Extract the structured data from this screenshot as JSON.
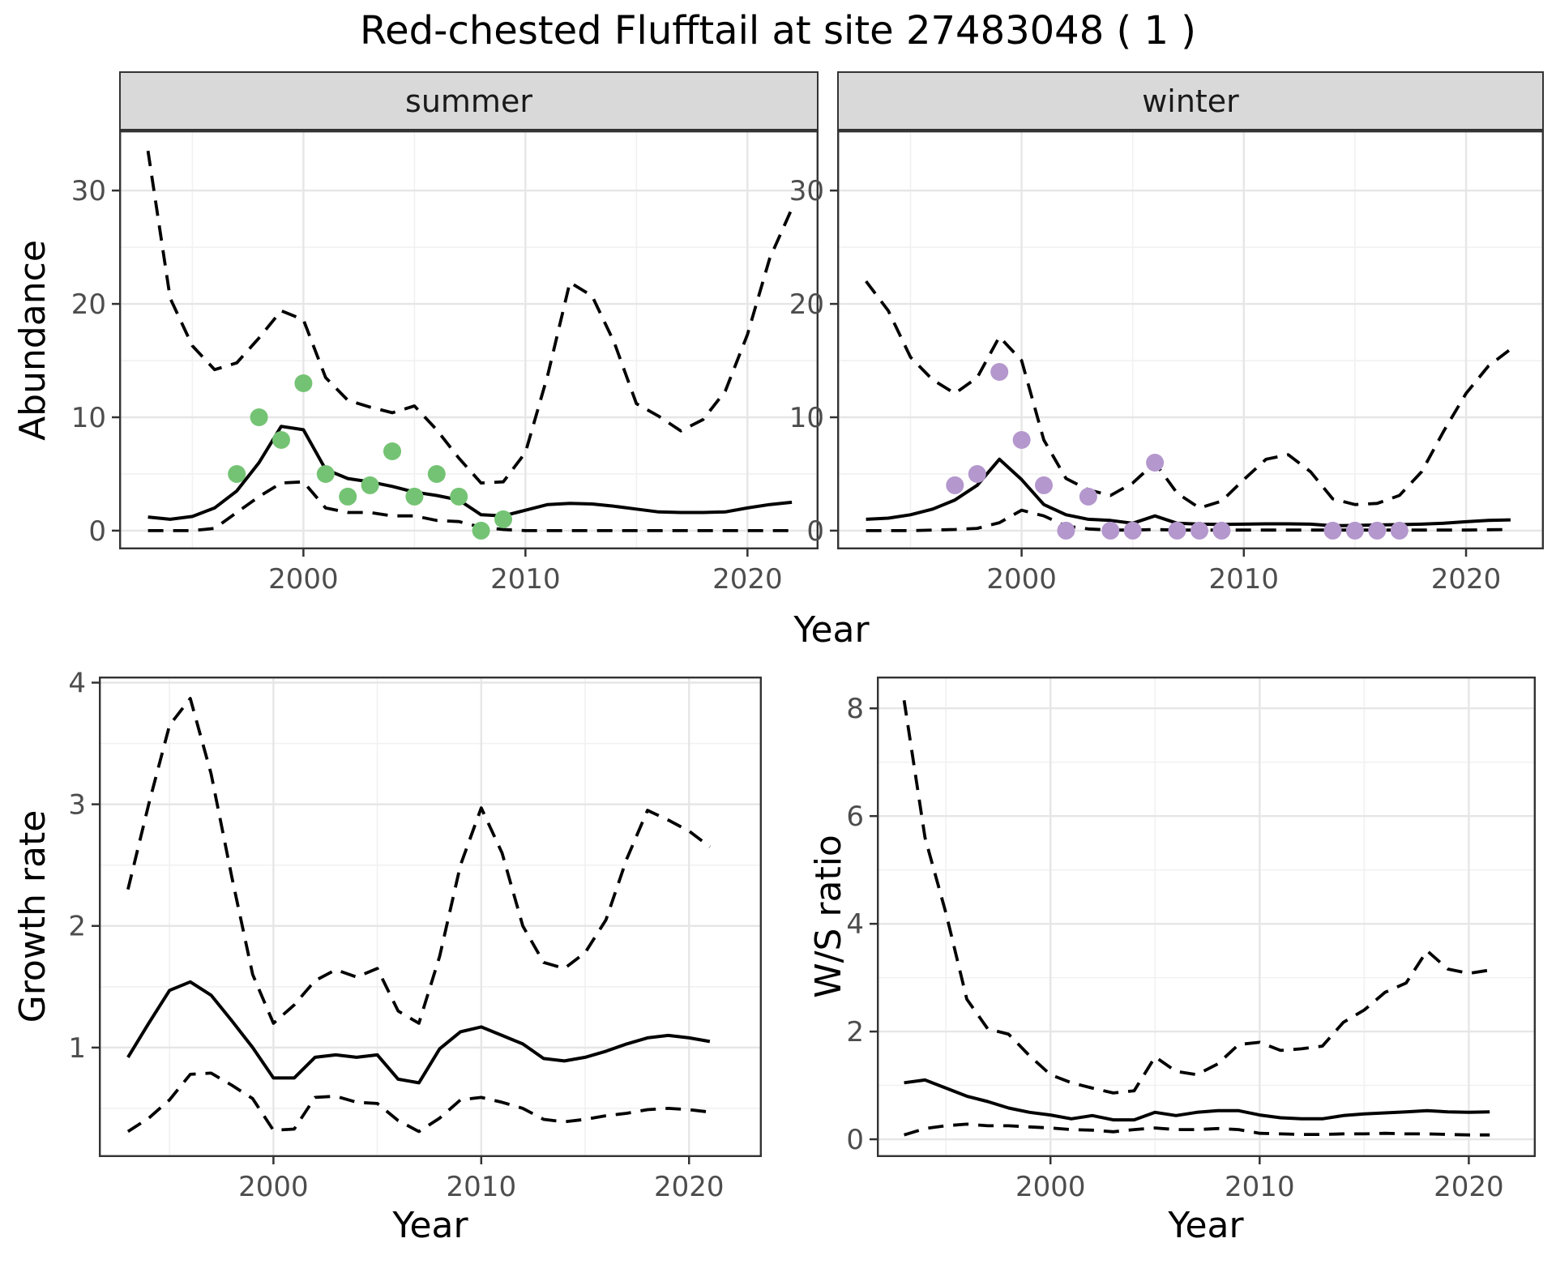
{
  "title": "Red-chested Flufftail at site 27483048 ( 1 )",
  "axis_titles": {
    "abundance": "Abundance",
    "year": "Year",
    "growth_rate": "Growth rate",
    "ws_ratio": "W/S ratio"
  },
  "facets": {
    "summer": "summer",
    "winter": "winter"
  },
  "colors": {
    "summer_points": "#74c374",
    "winter_points": "#b497cd",
    "line": "#000000",
    "strip_background": "#d9d9d9",
    "panel_border": "#333333",
    "grid_major": "#e6e6e6",
    "grid_minor": "#f1f1f1",
    "tick_label": "#4d4d4d"
  },
  "chart_data": [
    {
      "panel": "abundance_summer",
      "type": "line",
      "facet_label": "summer",
      "ylabel": "Abundance",
      "xlabel": "Year",
      "xlim": [
        1991.7,
        2023.2
      ],
      "ylim": [
        -1.65,
        35.3
      ],
      "xticks": {
        "major": [
          2000,
          2010,
          2020
        ],
        "labels": [
          "2000",
          "2010",
          "2020"
        ],
        "minor": [
          1995,
          2005,
          2015
        ]
      },
      "yticks": {
        "major": [
          0,
          10,
          20,
          30
        ],
        "labels": [
          "0",
          "10",
          "20",
          "30"
        ],
        "minor": [
          5,
          15,
          25
        ]
      },
      "x": [
        1993,
        1994,
        1995,
        1996,
        1997,
        1998,
        1999,
        2000,
        2001,
        2002,
        2003,
        2004,
        2005,
        2006,
        2007,
        2008,
        2009,
        2010,
        2011,
        2012,
        2013,
        2014,
        2015,
        2016,
        2017,
        2018,
        2019,
        2020,
        2021,
        2022
      ],
      "series": [
        {
          "name": "median",
          "style": "solid",
          "values": [
            1.2,
            1.0,
            1.25,
            2.0,
            3.5,
            6.0,
            9.2,
            8.9,
            5.4,
            4.6,
            4.3,
            3.9,
            3.4,
            3.1,
            2.7,
            1.4,
            1.3,
            1.8,
            2.3,
            2.4,
            2.35,
            2.15,
            1.9,
            1.65,
            1.6,
            1.6,
            1.65,
            2.0,
            2.3,
            2.5
          ]
        },
        {
          "name": "upper 95% CI",
          "style": "dashed",
          "values": [
            33.5,
            20.5,
            16.3,
            14.2,
            14.8,
            17.0,
            19.4,
            18.6,
            13.5,
            11.5,
            10.9,
            10.4,
            11.0,
            8.9,
            6.4,
            4.2,
            4.3,
            6.9,
            13.7,
            21.9,
            20.7,
            16.6,
            11.2,
            10.1,
            8.8,
            9.8,
            12.3,
            17.3,
            24.0,
            28.4
          ]
        },
        {
          "name": "lower 95% CI",
          "style": "dashed",
          "values": [
            0,
            0,
            0,
            0.2,
            1.6,
            3.0,
            4.2,
            4.3,
            2.0,
            1.6,
            1.6,
            1.3,
            1.3,
            0.9,
            0.8,
            0.3,
            0.1,
            0,
            0,
            0,
            0,
            0,
            0,
            0,
            0,
            0,
            0,
            0,
            0,
            0
          ]
        }
      ],
      "points": {
        "name": "observed summer counts",
        "color": "#74c374",
        "x": [
          1997,
          1998,
          1999,
          2000,
          2001,
          2002,
          2003,
          2004,
          2005,
          2006,
          2007,
          2008,
          2009
        ],
        "y": [
          5,
          10,
          8,
          13,
          5,
          3,
          4,
          7,
          3,
          5,
          3,
          0,
          1
        ]
      }
    },
    {
      "panel": "abundance_winter",
      "type": "line",
      "facet_label": "winter",
      "ylabel": "Abundance",
      "xlabel": "Year",
      "xlim": [
        1991.7,
        2023.5
      ],
      "ylim": [
        -1.65,
        35.3
      ],
      "xticks": {
        "major": [
          2000,
          2010,
          2020
        ],
        "labels": [
          "2000",
          "2010",
          "2020"
        ],
        "minor": [
          1995,
          2005,
          2015
        ]
      },
      "yticks": {
        "major": [
          0,
          10,
          20,
          30
        ],
        "labels": [
          "0",
          "10",
          "20",
          "30"
        ],
        "minor": [
          5,
          15,
          25
        ]
      },
      "x": [
        1993,
        1994,
        1995,
        1996,
        1997,
        1998,
        1999,
        2000,
        2001,
        2002,
        2003,
        2004,
        2005,
        2006,
        2007,
        2008,
        2009,
        2010,
        2011,
        2012,
        2013,
        2014,
        2015,
        2016,
        2017,
        2018,
        2019,
        2020,
        2021,
        2022
      ],
      "series": [
        {
          "name": "median",
          "style": "solid",
          "values": [
            1.0,
            1.1,
            1.4,
            1.9,
            2.7,
            4.0,
            6.3,
            4.5,
            2.3,
            1.4,
            1.0,
            0.9,
            0.65,
            1.3,
            0.65,
            0.57,
            0.55,
            0.57,
            0.6,
            0.6,
            0.57,
            0.43,
            0.46,
            0.5,
            0.53,
            0.57,
            0.65,
            0.79,
            0.9,
            0.95
          ]
        },
        {
          "name": "upper 95% CI",
          "style": "dashed",
          "values": [
            22.0,
            19.4,
            15.3,
            13.3,
            12.1,
            13.5,
            17.1,
            15.0,
            8.0,
            4.6,
            3.6,
            3.1,
            4.2,
            6.0,
            3.3,
            2.0,
            2.6,
            4.5,
            6.3,
            6.7,
            5.2,
            2.8,
            2.3,
            2.4,
            3.1,
            5.2,
            8.8,
            12.1,
            14.5,
            16.0
          ]
        },
        {
          "name": "lower 95% CI",
          "style": "dashed",
          "values": [
            0,
            0,
            0,
            0.05,
            0.1,
            0.2,
            0.7,
            1.8,
            1.3,
            0.4,
            0.15,
            0.05,
            0.05,
            0.1,
            0.05,
            0.05,
            0.05,
            0.05,
            0.05,
            0.05,
            0.05,
            0.05,
            0.05,
            0.05,
            0.05,
            0.05,
            0.05,
            0.05,
            0.08,
            0.1
          ]
        }
      ],
      "points": {
        "name": "observed winter counts",
        "color": "#b497cd",
        "x": [
          1997,
          1998,
          1999,
          2000,
          2001,
          2002,
          2003,
          2004,
          2005,
          2006,
          2007,
          2008,
          2009,
          2014,
          2015,
          2016,
          2017
        ],
        "y": [
          4,
          5,
          14,
          8,
          4,
          0,
          3,
          0,
          0,
          6,
          0,
          0,
          0,
          0,
          0,
          0,
          0
        ]
      }
    },
    {
      "panel": "growth_rate",
      "type": "line",
      "ylabel": "Growth rate",
      "xlabel": "Year",
      "xlim": [
        1991.6,
        2023.5
      ],
      "ylim": [
        0.1,
        4.05
      ],
      "xticks": {
        "major": [
          2000,
          2010,
          2020
        ],
        "labels": [
          "2000",
          "2010",
          "2020"
        ],
        "minor": [
          1995,
          2005,
          2015
        ]
      },
      "yticks": {
        "major": [
          1,
          2,
          3,
          4
        ],
        "labels": [
          "1",
          "2",
          "3",
          "4"
        ],
        "minor": [
          0.5,
          1.5,
          2.5,
          3.5
        ]
      },
      "x": [
        1993,
        1994,
        1995,
        1996,
        1997,
        1998,
        1999,
        2000,
        2001,
        2002,
        2003,
        2004,
        2005,
        2006,
        2007,
        2008,
        2009,
        2010,
        2011,
        2012,
        2013,
        2014,
        2015,
        2016,
        2017,
        2018,
        2019,
        2020,
        2021
      ],
      "series": [
        {
          "name": "median",
          "style": "solid",
          "values": [
            0.92,
            1.2,
            1.47,
            1.54,
            1.43,
            1.22,
            1.0,
            0.75,
            0.75,
            0.92,
            0.94,
            0.92,
            0.94,
            0.74,
            0.71,
            0.99,
            1.13,
            1.17,
            1.1,
            1.03,
            0.91,
            0.89,
            0.92,
            0.97,
            1.03,
            1.08,
            1.1,
            1.08,
            1.05
          ]
        },
        {
          "name": "upper 95% CI",
          "style": "dashed",
          "values": [
            2.3,
            3.0,
            3.65,
            3.87,
            3.25,
            2.4,
            1.6,
            1.2,
            1.35,
            1.55,
            1.64,
            1.58,
            1.65,
            1.3,
            1.2,
            1.75,
            2.5,
            2.97,
            2.6,
            2.0,
            1.7,
            1.65,
            1.78,
            2.05,
            2.55,
            2.95,
            2.87,
            2.78,
            2.65
          ]
        },
        {
          "name": "lower 95% CI",
          "style": "dashed",
          "values": [
            0.31,
            0.42,
            0.57,
            0.78,
            0.79,
            0.69,
            0.58,
            0.32,
            0.33,
            0.59,
            0.6,
            0.55,
            0.54,
            0.4,
            0.31,
            0.42,
            0.57,
            0.59,
            0.55,
            0.5,
            0.41,
            0.39,
            0.41,
            0.44,
            0.46,
            0.49,
            0.5,
            0.49,
            0.47
          ]
        }
      ]
    },
    {
      "panel": "ws_ratio",
      "type": "line",
      "ylabel": "W/S ratio",
      "xlabel": "Year",
      "xlim": [
        1991.7,
        2023.2
      ],
      "ylim": [
        -0.33,
        8.59
      ],
      "xticks": {
        "major": [
          2000,
          2010,
          2020
        ],
        "labels": [
          "2000",
          "2010",
          "2020"
        ],
        "minor": [
          1995,
          2005,
          2015
        ]
      },
      "yticks": {
        "major": [
          0,
          2,
          4,
          6,
          8
        ],
        "labels": [
          "0",
          "2",
          "4",
          "6",
          "8"
        ],
        "minor": [
          1,
          3,
          5,
          7
        ]
      },
      "x": [
        1993,
        1994,
        1995,
        1996,
        1997,
        1998,
        1999,
        2000,
        2001,
        2002,
        2003,
        2004,
        2005,
        2006,
        2007,
        2008,
        2009,
        2010,
        2011,
        2012,
        2013,
        2014,
        2015,
        2016,
        2017,
        2018,
        2019,
        2020,
        2021
      ],
      "series": [
        {
          "name": "median",
          "style": "solid",
          "values": [
            1.05,
            1.1,
            0.95,
            0.8,
            0.7,
            0.58,
            0.5,
            0.45,
            0.38,
            0.44,
            0.36,
            0.36,
            0.5,
            0.44,
            0.5,
            0.53,
            0.53,
            0.45,
            0.4,
            0.38,
            0.38,
            0.44,
            0.47,
            0.49,
            0.51,
            0.53,
            0.51,
            0.5,
            0.51
          ]
        },
        {
          "name": "upper 95% CI",
          "style": "dashed",
          "values": [
            8.15,
            5.6,
            4.2,
            2.6,
            2.05,
            1.95,
            1.55,
            1.2,
            1.05,
            0.95,
            0.86,
            0.9,
            1.53,
            1.26,
            1.2,
            1.4,
            1.76,
            1.8,
            1.65,
            1.68,
            1.73,
            2.17,
            2.4,
            2.73,
            2.9,
            3.5,
            3.16,
            3.08,
            3.14
          ]
        },
        {
          "name": "lower 95% CI",
          "style": "dashed",
          "values": [
            0.08,
            0.2,
            0.25,
            0.28,
            0.25,
            0.25,
            0.23,
            0.21,
            0.18,
            0.17,
            0.14,
            0.18,
            0.21,
            0.18,
            0.18,
            0.2,
            0.18,
            0.11,
            0.1,
            0.09,
            0.09,
            0.1,
            0.1,
            0.11,
            0.1,
            0.1,
            0.09,
            0.08,
            0.08
          ]
        }
      ]
    }
  ]
}
